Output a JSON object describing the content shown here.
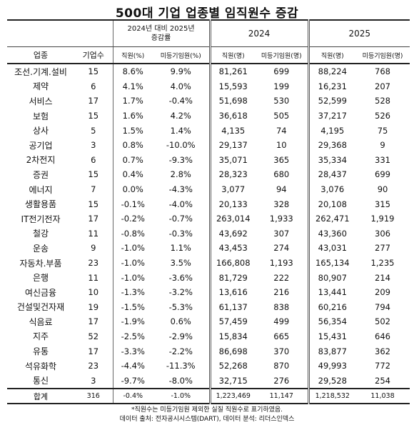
{
  "title": "500대 기업 업종별 임직원수 증감",
  "header": {
    "rate_group_line1": "2024년 대비 2025년",
    "rate_group_line2": "증감률",
    "year_2024": "2024",
    "year_2025": "2025",
    "col_industry": "업종",
    "col_company_count": "기업수",
    "col_rate_staff": "직원(%)",
    "col_rate_unregistered": "미등기임원(%)",
    "col_2024_staff": "직원(명)",
    "col_2024_unregistered": "미등기임원(명)",
    "col_2025_staff": "직원(명)",
    "col_2025_unregistered": "미등기임원(명)"
  },
  "rows": [
    {
      "industry": "조선.기계.설비",
      "count": "15",
      "rate_staff": "8.6%",
      "rate_exec": "9.9%",
      "staff_2024": "81,261",
      "exec_2024": "699",
      "staff_2025": "88,224",
      "exec_2025": "768"
    },
    {
      "industry": "제약",
      "count": "6",
      "rate_staff": "4.1%",
      "rate_exec": "4.0%",
      "staff_2024": "15,593",
      "exec_2024": "199",
      "staff_2025": "16,231",
      "exec_2025": "207"
    },
    {
      "industry": "서비스",
      "count": "17",
      "rate_staff": "1.7%",
      "rate_exec": "-0.4%",
      "staff_2024": "51,698",
      "exec_2024": "530",
      "staff_2025": "52,599",
      "exec_2025": "528"
    },
    {
      "industry": "보험",
      "count": "15",
      "rate_staff": "1.6%",
      "rate_exec": "4.2%",
      "staff_2024": "36,618",
      "exec_2024": "505",
      "staff_2025": "37,217",
      "exec_2025": "526"
    },
    {
      "industry": "상사",
      "count": "5",
      "rate_staff": "1.5%",
      "rate_exec": "1.4%",
      "staff_2024": "4,135",
      "exec_2024": "74",
      "staff_2025": "4,195",
      "exec_2025": "75"
    },
    {
      "industry": "공기업",
      "count": "3",
      "rate_staff": "0.8%",
      "rate_exec": "-10.0%",
      "staff_2024": "29,137",
      "exec_2024": "10",
      "staff_2025": "29,368",
      "exec_2025": "9"
    },
    {
      "industry": "2차전지",
      "count": "6",
      "rate_staff": "0.7%",
      "rate_exec": "-9.3%",
      "staff_2024": "35,071",
      "exec_2024": "365",
      "staff_2025": "35,334",
      "exec_2025": "331"
    },
    {
      "industry": "증권",
      "count": "15",
      "rate_staff": "0.4%",
      "rate_exec": "2.8%",
      "staff_2024": "28,323",
      "exec_2024": "680",
      "staff_2025": "28,437",
      "exec_2025": "699"
    },
    {
      "industry": "에너지",
      "count": "7",
      "rate_staff": "0.0%",
      "rate_exec": "-4.3%",
      "staff_2024": "3,077",
      "exec_2024": "94",
      "staff_2025": "3,076",
      "exec_2025": "90"
    },
    {
      "industry": "생활용품",
      "count": "15",
      "rate_staff": "-0.1%",
      "rate_exec": "-4.0%",
      "staff_2024": "20,133",
      "exec_2024": "328",
      "staff_2025": "20,108",
      "exec_2025": "315"
    },
    {
      "industry": "IT전기전자",
      "count": "17",
      "rate_staff": "-0.2%",
      "rate_exec": "-0.7%",
      "staff_2024": "263,014",
      "exec_2024": "1,933",
      "staff_2025": "262,471",
      "exec_2025": "1,919"
    },
    {
      "industry": "철강",
      "count": "11",
      "rate_staff": "-0.8%",
      "rate_exec": "-0.3%",
      "staff_2024": "43,692",
      "exec_2024": "307",
      "staff_2025": "43,360",
      "exec_2025": "306"
    },
    {
      "industry": "운송",
      "count": "9",
      "rate_staff": "-1.0%",
      "rate_exec": "1.1%",
      "staff_2024": "43,453",
      "exec_2024": "274",
      "staff_2025": "43,031",
      "exec_2025": "277"
    },
    {
      "industry": "자동차.부품",
      "count": "23",
      "rate_staff": "-1.0%",
      "rate_exec": "3.5%",
      "staff_2024": "166,808",
      "exec_2024": "1,193",
      "staff_2025": "165,134",
      "exec_2025": "1,235"
    },
    {
      "industry": "은행",
      "count": "11",
      "rate_staff": "-1.0%",
      "rate_exec": "-3.6%",
      "staff_2024": "81,729",
      "exec_2024": "222",
      "staff_2025": "80,907",
      "exec_2025": "214"
    },
    {
      "industry": "여신금융",
      "count": "10",
      "rate_staff": "-1.3%",
      "rate_exec": "-3.2%",
      "staff_2024": "13,616",
      "exec_2024": "216",
      "staff_2025": "13,441",
      "exec_2025": "209"
    },
    {
      "industry": "건설및건자재",
      "count": "19",
      "rate_staff": "-1.5%",
      "rate_exec": "-5.3%",
      "staff_2024": "61,137",
      "exec_2024": "838",
      "staff_2025": "60,216",
      "exec_2025": "794"
    },
    {
      "industry": "식음료",
      "count": "17",
      "rate_staff": "-1.9%",
      "rate_exec": "0.6%",
      "staff_2024": "57,459",
      "exec_2024": "499",
      "staff_2025": "56,354",
      "exec_2025": "502"
    },
    {
      "industry": "지주",
      "count": "52",
      "rate_staff": "-2.5%",
      "rate_exec": "-2.9%",
      "staff_2024": "15,834",
      "exec_2024": "665",
      "staff_2025": "15,431",
      "exec_2025": "646"
    },
    {
      "industry": "유통",
      "count": "17",
      "rate_staff": "-3.3%",
      "rate_exec": "-2.2%",
      "staff_2024": "86,698",
      "exec_2024": "370",
      "staff_2025": "83,877",
      "exec_2025": "362"
    },
    {
      "industry": "석유화학",
      "count": "23",
      "rate_staff": "-4.4%",
      "rate_exec": "-11.3%",
      "staff_2024": "52,268",
      "exec_2024": "870",
      "staff_2025": "49,993",
      "exec_2025": "772"
    },
    {
      "industry": "통신",
      "count": "3",
      "rate_staff": "-9.7%",
      "rate_exec": "-8.0%",
      "staff_2024": "32,715",
      "exec_2024": "276",
      "staff_2025": "29,528",
      "exec_2025": "254"
    }
  ],
  "total": {
    "industry": "합계",
    "count": "316",
    "rate_staff": "-0.4%",
    "rate_exec": "-1.0%",
    "staff_2024": "1,223,469",
    "exec_2024": "11,147",
    "staff_2025": "1,218,532",
    "exec_2025": "11,038"
  },
  "notes": {
    "footnote": "*직원수는 미등기임원 제외한 실질 직원수로 표기하였음.",
    "source": "데이터 출처: 전자공시시스템(DART), 데이터 분석: 리더스인덱스"
  }
}
